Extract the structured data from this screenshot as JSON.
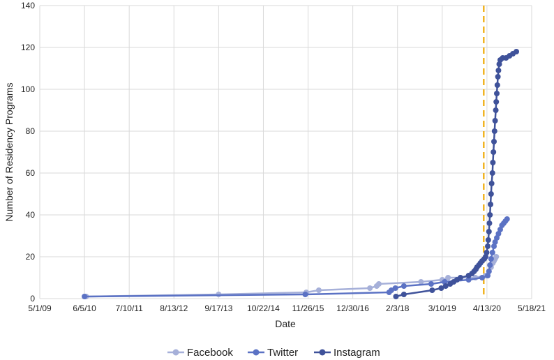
{
  "chart_data": {
    "type": "scatter",
    "xlabel": "Date",
    "ylabel": "Number of Residency Programs",
    "x_ticks": [
      "5/1/09",
      "6/5/10",
      "7/10/11",
      "8/13/12",
      "9/17/13",
      "10/22/14",
      "11/26/15",
      "12/30/16",
      "2/3/18",
      "3/10/19",
      "4/13/20",
      "5/18/21"
    ],
    "xlim": [
      "2009-05-01",
      "2021-05-18"
    ],
    "ylim": [
      0,
      140
    ],
    "y_ticks": [
      0,
      20,
      40,
      60,
      80,
      100,
      120,
      140
    ],
    "grid": true,
    "legend_position": "bottom",
    "marker": "circle-with-line",
    "reference_line": {
      "x": "2020-03-15",
      "style": "dashed",
      "color": "#f0b323"
    },
    "series": [
      {
        "name": "Facebook",
        "color": "#a6b0d9",
        "points": [
          [
            "2010-06-20",
            1
          ],
          [
            "2013-09-17",
            2
          ],
          [
            "2015-11-10",
            3
          ],
          [
            "2016-03-01",
            4
          ],
          [
            "2017-06-01",
            5
          ],
          [
            "2017-08-01",
            6
          ],
          [
            "2017-08-20",
            7
          ],
          [
            "2018-09-01",
            8
          ],
          [
            "2019-03-10",
            9
          ],
          [
            "2019-05-01",
            10
          ],
          [
            "2020-01-01",
            10
          ],
          [
            "2020-04-01",
            11
          ],
          [
            "2020-05-01",
            13
          ],
          [
            "2020-05-20",
            15
          ],
          [
            "2020-06-05",
            17
          ],
          [
            "2020-06-15",
            18
          ],
          [
            "2020-06-25",
            19
          ],
          [
            "2020-07-05",
            20
          ]
        ]
      },
      {
        "name": "Twitter",
        "color": "#5b72c4",
        "points": [
          [
            "2010-06-05",
            1
          ],
          [
            "2015-11-01",
            2
          ],
          [
            "2017-11-20",
            3
          ],
          [
            "2017-12-10",
            4
          ],
          [
            "2018-01-15",
            5
          ],
          [
            "2018-04-01",
            6
          ],
          [
            "2018-12-01",
            7
          ],
          [
            "2019-04-01",
            8
          ],
          [
            "2019-11-01",
            9
          ],
          [
            "2020-03-01",
            10
          ],
          [
            "2020-04-20",
            11
          ],
          [
            "2020-05-01",
            13
          ],
          [
            "2020-05-10",
            16
          ],
          [
            "2020-05-20",
            19
          ],
          [
            "2020-06-01",
            22
          ],
          [
            "2020-06-15",
            25
          ],
          [
            "2020-06-25",
            27
          ],
          [
            "2020-07-10",
            29
          ],
          [
            "2020-07-25",
            31
          ],
          [
            "2020-08-10",
            33
          ],
          [
            "2020-08-25",
            35
          ],
          [
            "2020-09-10",
            36
          ],
          [
            "2020-09-25",
            37
          ],
          [
            "2020-10-10",
            38
          ]
        ]
      },
      {
        "name": "Instagram",
        "color": "#3f529a",
        "points": [
          [
            "2018-01-20",
            1
          ],
          [
            "2018-04-01",
            2
          ],
          [
            "2018-12-10",
            4
          ],
          [
            "2019-03-01",
            5
          ],
          [
            "2019-04-10",
            6
          ],
          [
            "2019-05-20",
            7
          ],
          [
            "2019-06-20",
            8
          ],
          [
            "2019-07-20",
            9
          ],
          [
            "2019-08-20",
            10
          ],
          [
            "2019-11-01",
            11
          ],
          [
            "2019-12-01",
            12
          ],
          [
            "2019-12-20",
            13
          ],
          [
            "2020-01-05",
            14
          ],
          [
            "2020-01-15",
            15
          ],
          [
            "2020-02-01",
            16
          ],
          [
            "2020-02-15",
            17
          ],
          [
            "2020-03-01",
            18
          ],
          [
            "2020-03-20",
            19
          ],
          [
            "2020-04-01",
            20
          ],
          [
            "2020-04-10",
            22
          ],
          [
            "2020-04-20",
            25
          ],
          [
            "2020-04-25",
            28
          ],
          [
            "2020-05-01",
            32
          ],
          [
            "2020-05-05",
            36
          ],
          [
            "2020-05-10",
            40
          ],
          [
            "2020-05-15",
            45
          ],
          [
            "2020-05-20",
            50
          ],
          [
            "2020-05-25",
            55
          ],
          [
            "2020-06-01",
            60
          ],
          [
            "2020-06-05",
            65
          ],
          [
            "2020-06-10",
            70
          ],
          [
            "2020-06-15",
            75
          ],
          [
            "2020-06-20",
            80
          ],
          [
            "2020-06-25",
            85
          ],
          [
            "2020-07-01",
            90
          ],
          [
            "2020-07-05",
            94
          ],
          [
            "2020-07-10",
            98
          ],
          [
            "2020-07-15",
            102
          ],
          [
            "2020-07-20",
            106
          ],
          [
            "2020-07-25",
            109
          ],
          [
            "2020-08-01",
            112
          ],
          [
            "2020-08-10",
            114
          ],
          [
            "2020-09-01",
            115
          ],
          [
            "2020-10-01",
            115
          ],
          [
            "2020-11-01",
            116
          ],
          [
            "2020-12-01",
            117
          ],
          [
            "2021-01-01",
            118
          ]
        ]
      }
    ]
  }
}
